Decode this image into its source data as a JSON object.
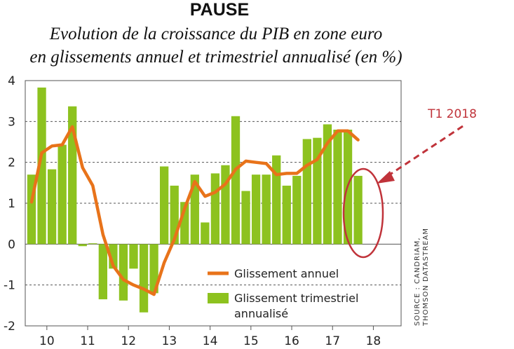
{
  "chart_data": {
    "type": "bar",
    "title": "PAUSE",
    "subtitle_lines": [
      "Evolution de la croissance du PIB en zone euro",
      "en glissements annuel et trimestriel annualisé (en %)"
    ],
    "ylim": [
      -2,
      4
    ],
    "yticks": [
      4,
      3,
      2,
      1,
      0,
      -1,
      -2
    ],
    "year_labels": [
      "10",
      "11",
      "12",
      "13",
      "14",
      "15",
      "16",
      "17",
      "18"
    ],
    "grid": "horizontal dashed",
    "legend_position": "bottom-right",
    "series": [
      {
        "name": "Glissement trimestriel annualisé",
        "type": "bar",
        "color": "#8dc21f",
        "values": [
          1.7,
          3.83,
          1.83,
          2.43,
          3.37,
          -0.05,
          0.02,
          -1.35,
          -0.6,
          -1.38,
          -0.6,
          -1.67,
          -1.2,
          1.9,
          1.43,
          1.03,
          1.7,
          0.53,
          1.73,
          1.93,
          3.13,
          1.3,
          1.7,
          1.7,
          2.17,
          1.43,
          1.67,
          2.57,
          2.6,
          2.93,
          2.8,
          2.8,
          1.67
        ]
      },
      {
        "name": "Glissement annuel",
        "type": "line",
        "color": "#e8731a",
        "values": [
          1.03,
          2.23,
          2.4,
          2.43,
          2.87,
          1.87,
          1.43,
          0.23,
          -0.53,
          -0.87,
          -1.0,
          -1.1,
          -1.23,
          -0.45,
          0.12,
          0.87,
          1.53,
          1.17,
          1.27,
          1.47,
          1.83,
          2.03,
          2.0,
          1.97,
          1.7,
          1.73,
          1.73,
          1.93,
          2.07,
          2.47,
          2.77,
          2.77,
          2.55
        ]
      }
    ],
    "legend": {
      "line_label": "Glissement annuel",
      "bar_label_lines": [
        "Glissement trimestriel",
        "annualisé"
      ]
    },
    "annotation": {
      "label": "T1 2018",
      "color": "#c0333a"
    },
    "source": [
      "SOURCE : CANDRIAM,",
      "THOMSON DATASTREAM"
    ]
  }
}
